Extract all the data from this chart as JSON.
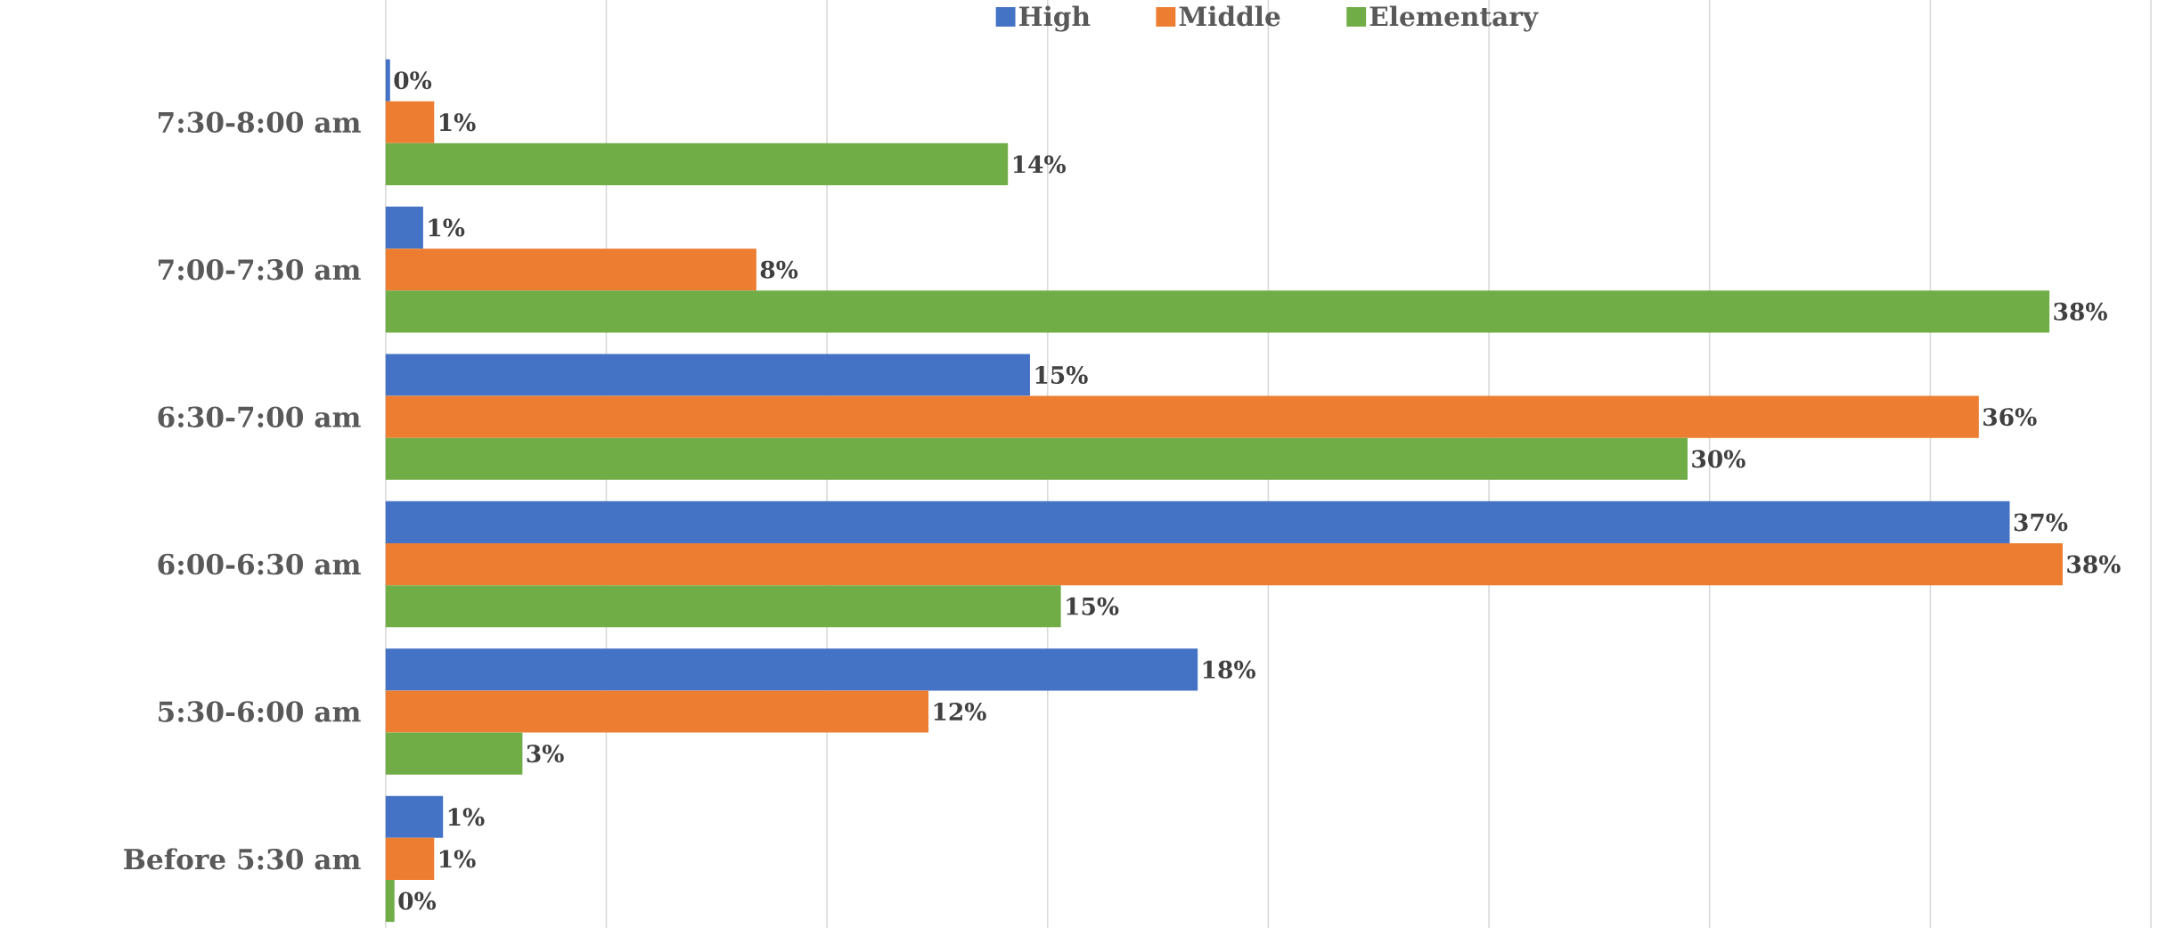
{
  "chart_data": {
    "type": "bar",
    "orientation": "horizontal",
    "categories": [
      "7:30-8:00 am",
      "7:00-7:30 am",
      "6:30-7:00 am",
      "6:00-6:30 am",
      "5:30-6:00 am",
      "Before 5:30 am"
    ],
    "series": [
      {
        "name": "High",
        "color": "#4472c4",
        "values": [
          0.1,
          0.85,
          14.6,
          36.8,
          18.4,
          1.3
        ],
        "value_labels": [
          "0%",
          "1%",
          "15%",
          "37%",
          "18%",
          "1%"
        ]
      },
      {
        "name": "Middle",
        "color": "#ed7d31",
        "values": [
          1.1,
          8.4,
          36.1,
          38.0,
          12.3,
          1.1
        ],
        "value_labels": [
          "1%",
          "8%",
          "36%",
          "38%",
          "12%",
          "1%"
        ]
      },
      {
        "name": "Elementary",
        "color": "#70ad47",
        "values": [
          14.1,
          37.7,
          29.5,
          15.3,
          3.1,
          0.2
        ],
        "value_labels": [
          "14%",
          "38%",
          "30%",
          "15%",
          "3%",
          "0%"
        ]
      }
    ],
    "xlim": [
      0,
      40
    ],
    "xticks": [
      {
        "value": 0,
        "label": null
      },
      {
        "value": 5,
        "label": null
      },
      {
        "value": 10,
        "label": null
      },
      {
        "value": 15,
        "label": null
      },
      {
        "value": 20,
        "label": null
      },
      {
        "value": 25,
        "label": null
      },
      {
        "value": 30,
        "label": null
      },
      {
        "value": 35,
        "label": null
      },
      {
        "value": 40,
        "label": null
      }
    ],
    "tick_labels": "y",
    "grid": "x",
    "legend": "top"
  }
}
